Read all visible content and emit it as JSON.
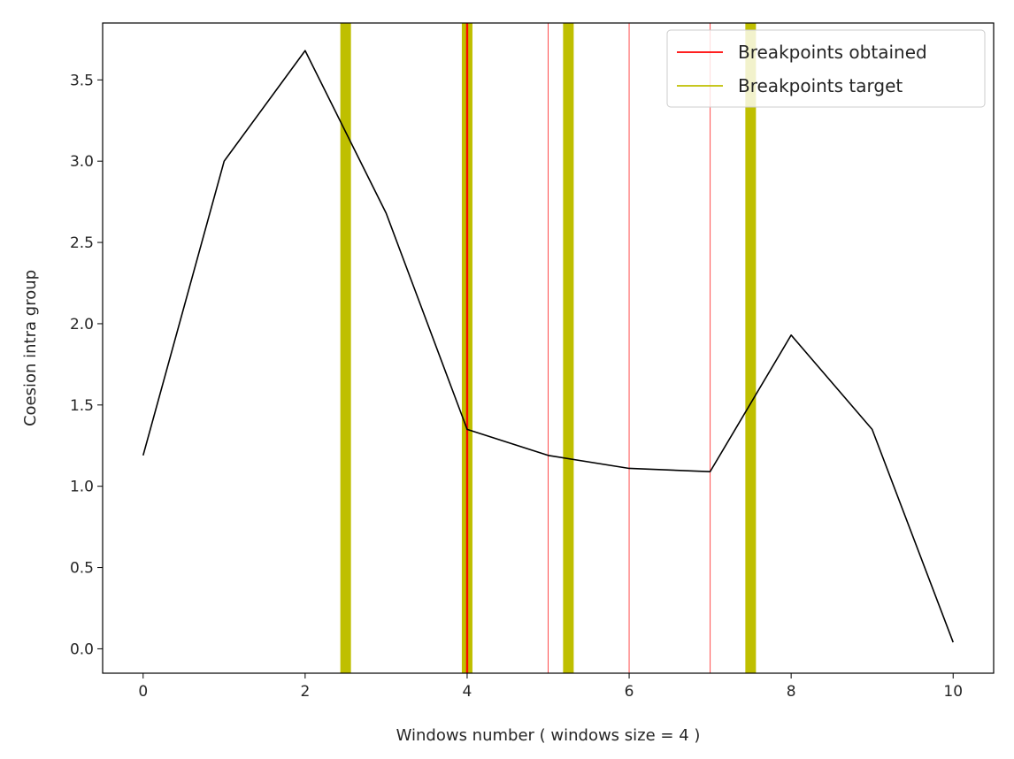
{
  "chart_data": {
    "type": "line",
    "title": "",
    "xlabel": "Windows number ( windows size = 4 )",
    "ylabel": "Coesion intra group",
    "xlim": [
      -0.5,
      10.5
    ],
    "ylim": [
      -0.15,
      3.85
    ],
    "xticks": [
      0,
      2,
      4,
      6,
      8,
      10
    ],
    "yticks": [
      0.0,
      0.5,
      1.0,
      1.5,
      2.0,
      2.5,
      3.0,
      3.5
    ],
    "ytick_labels": [
      "0.0",
      "0.5",
      "1.0",
      "1.5",
      "2.0",
      "2.5",
      "3.0",
      "3.5"
    ],
    "grid": false,
    "legend_position": "top-right",
    "series": [
      {
        "color": "#000000",
        "x": [
          0,
          1,
          2,
          3,
          4,
          5,
          6,
          7,
          8,
          9,
          10
        ],
        "y": [
          1.19,
          3.0,
          3.68,
          2.68,
          1.35,
          1.19,
          1.11,
          1.09,
          1.93,
          1.35,
          0.04
        ]
      }
    ],
    "breakpoints_target": {
      "name": "Breakpoints target",
      "color": "#bfbf00",
      "x": [
        2.5,
        4.0,
        5.25,
        7.5
      ]
    },
    "breakpoints_obtained": {
      "name": "Breakpoints obtained",
      "color": "#ff0000",
      "x": [
        4.0,
        5.0,
        6.0,
        7.0
      ]
    }
  }
}
